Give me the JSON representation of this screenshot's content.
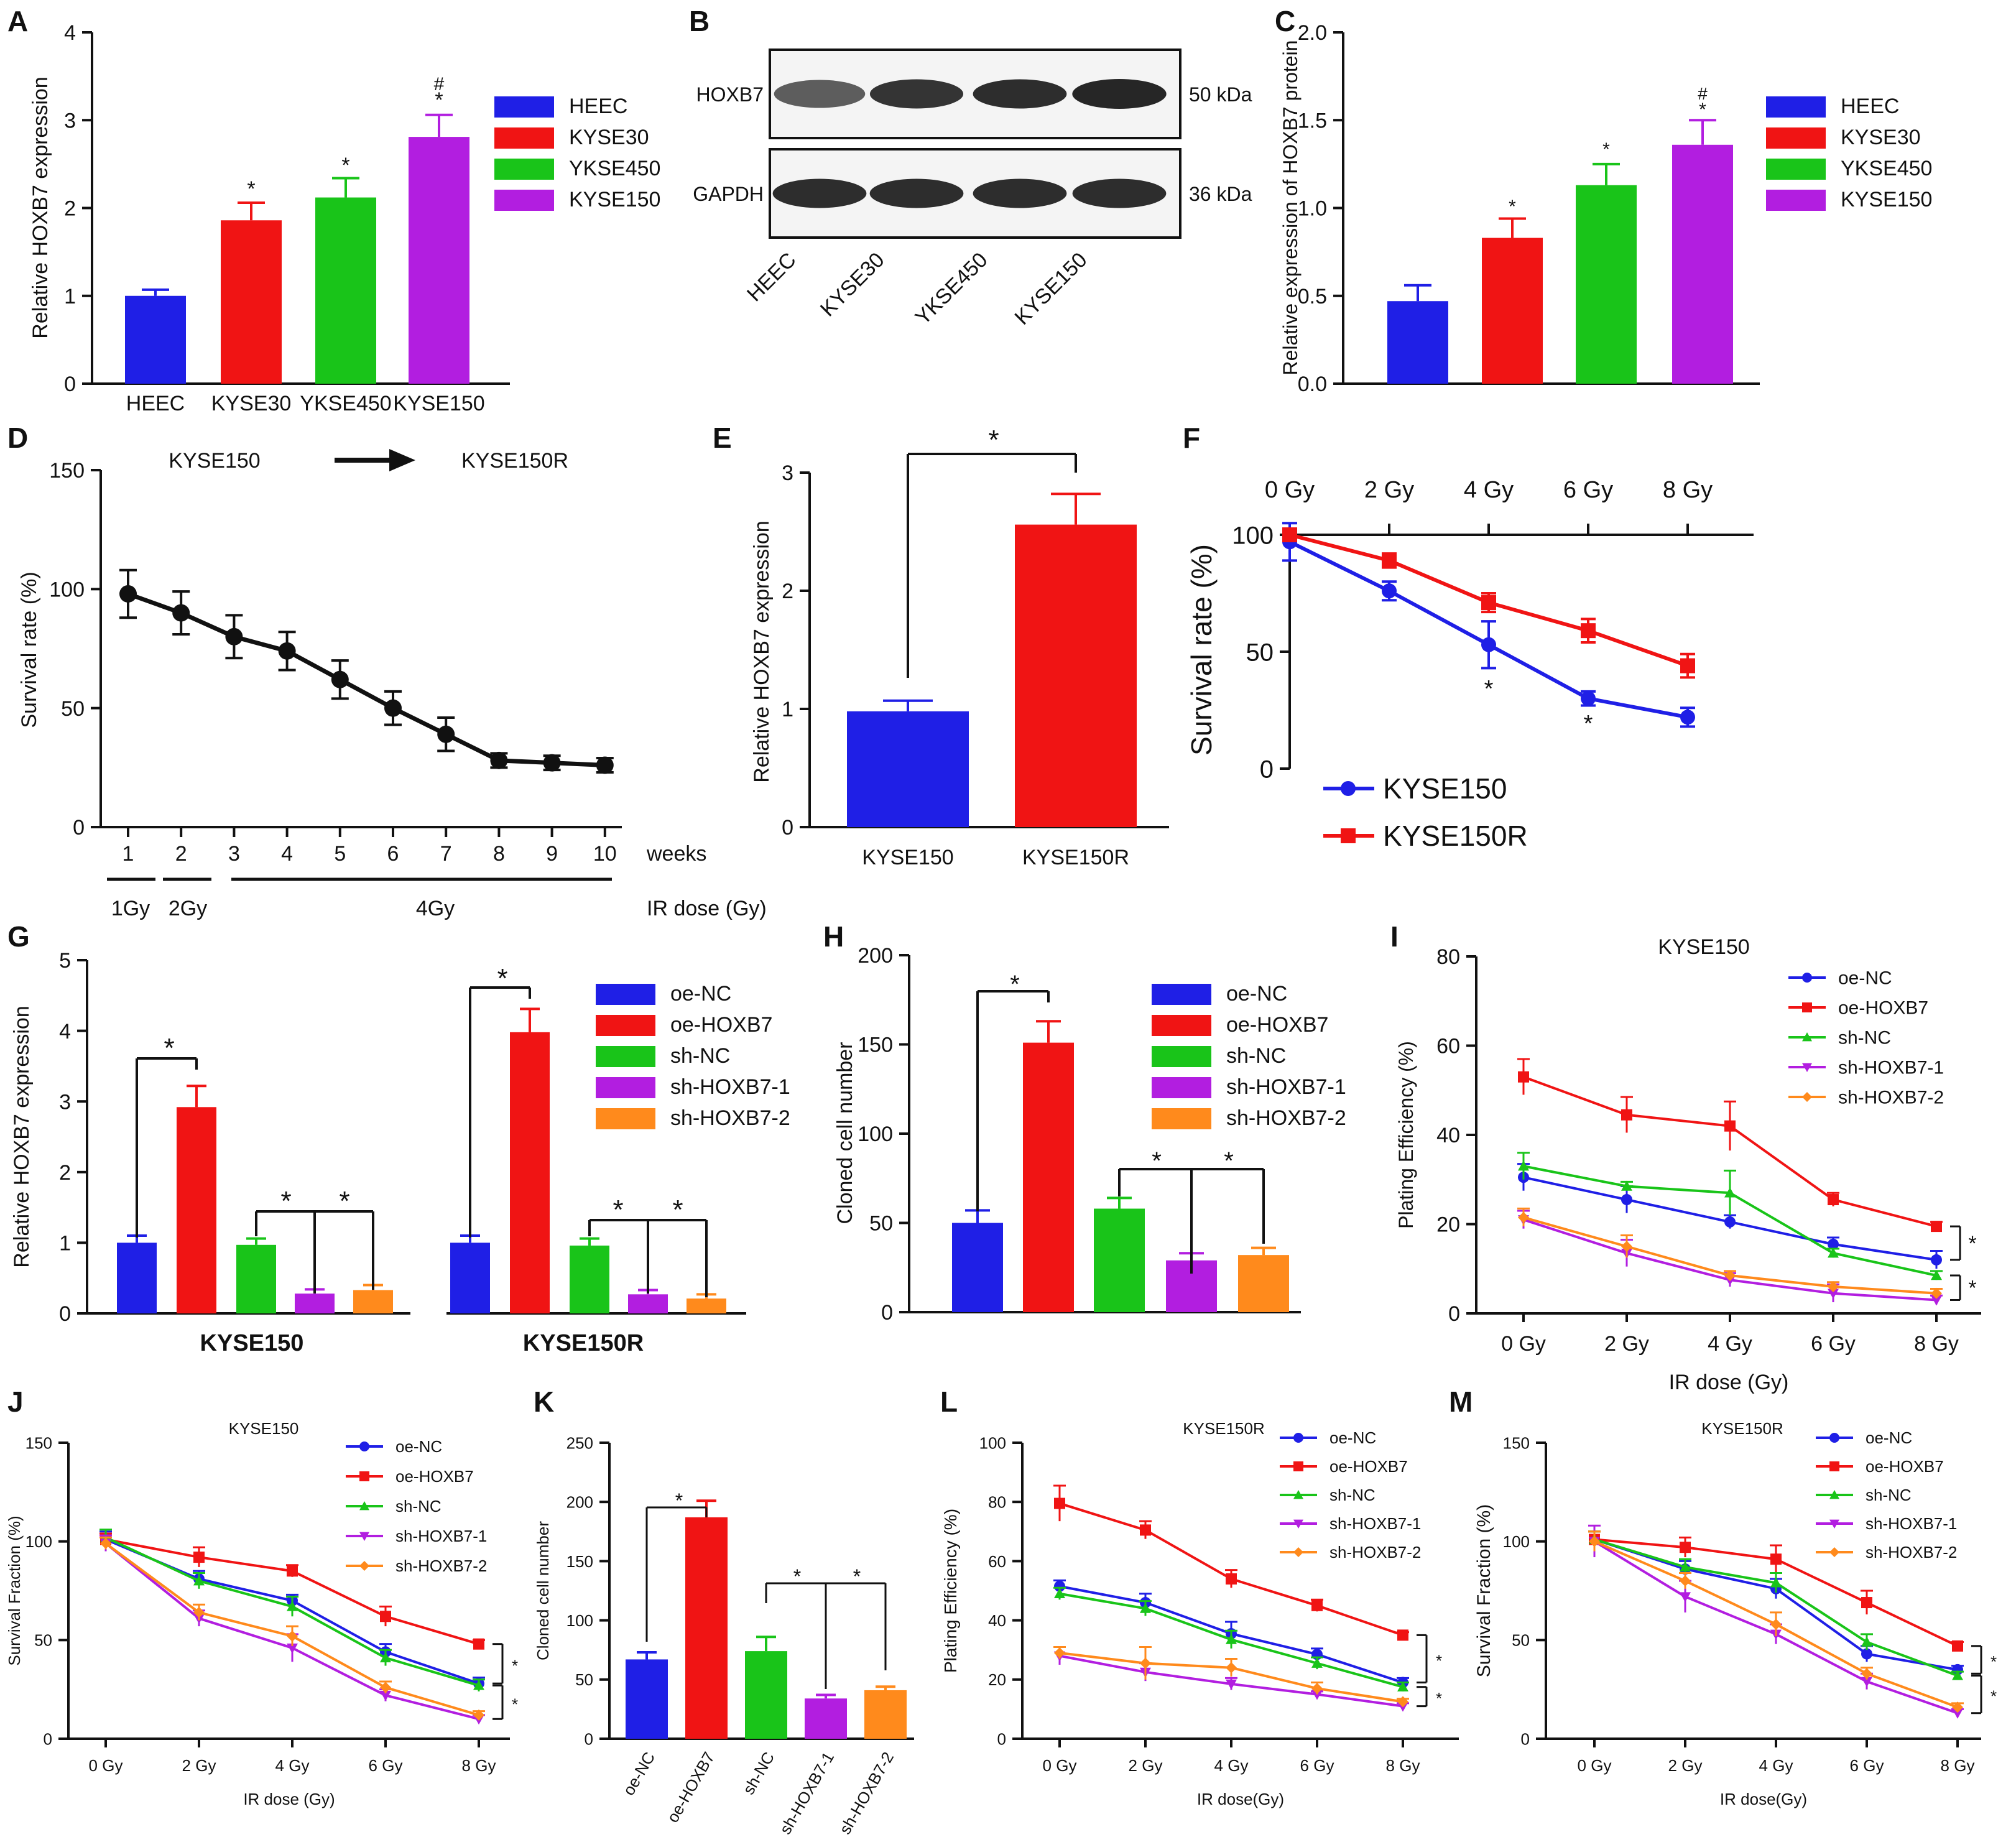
{
  "colors": {
    "blue": "#1f1fe6",
    "red": "#f01414",
    "green": "#19c419",
    "purple": "#b21ee0",
    "orange": "#ff8a1c",
    "black": "#111111"
  },
  "chart_data": [
    {
      "id": "A",
      "panel": "A",
      "type": "bar",
      "ylabel": "Relative HOXB7 expression",
      "xlabel": "",
      "ylim": [
        0,
        4
      ],
      "yticks": [
        0,
        1,
        2,
        3,
        4
      ],
      "categories": [
        "HEEC",
        "KYSE30",
        "YKSE450",
        "KYSE150"
      ],
      "values": [
        1.0,
        1.86,
        2.12,
        2.81
      ],
      "errors": [
        0.07,
        0.2,
        0.22,
        0.25
      ],
      "colors": [
        "#1f1fe6",
        "#f01414",
        "#19c419",
        "#b21ee0"
      ],
      "annotations": [
        "",
        "*",
        "*",
        "#\n*"
      ],
      "legend": [
        "HEEC",
        "KYSE30",
        "YKSE450",
        "KYSE150"
      ]
    },
    {
      "id": "B",
      "panel": "B",
      "type": "western_blot",
      "bands": [
        {
          "label": "HOXB7",
          "size": "50 kDa",
          "intensity": [
            0.55,
            0.85,
            0.9,
            0.95
          ]
        },
        {
          "label": "GAPDH",
          "size": "36 kDa",
          "intensity": [
            0.9,
            0.9,
            0.9,
            0.9
          ]
        }
      ],
      "lanes": [
        "HEEC",
        "KYSE30",
        "YKSE450",
        "KYSE150"
      ]
    },
    {
      "id": "C",
      "panel": "C",
      "type": "bar",
      "ylabel": "Relative expression of HOXB7 protein",
      "ylim": [
        0,
        2.0
      ],
      "yticks": [
        "0.0",
        "0.5",
        "1.0",
        "1.5",
        "2.0"
      ],
      "categories": [
        "HEEC",
        "KYSE30",
        "YKSE450",
        "KYSE150"
      ],
      "values": [
        0.47,
        0.83,
        1.13,
        1.36
      ],
      "errors": [
        0.09,
        0.11,
        0.12,
        0.14
      ],
      "colors": [
        "#1f1fe6",
        "#f01414",
        "#19c419",
        "#b21ee0"
      ],
      "annotations": [
        "",
        "*",
        "*",
        "#\n*"
      ],
      "legend": [
        "HEEC",
        "KYSE30",
        "YKSE450",
        "KYSE150"
      ]
    },
    {
      "id": "D",
      "panel": "D",
      "type": "line",
      "ylabel": "Survival rate (%)",
      "xlabel": "weeks",
      "ylim": [
        0,
        150
      ],
      "yticks": [
        0,
        50,
        100,
        150
      ],
      "x": [
        1,
        2,
        3,
        4,
        5,
        6,
        7,
        8,
        9,
        10
      ],
      "series": [
        {
          "name": "",
          "values": [
            98,
            90,
            80,
            74,
            62,
            50,
            39,
            28,
            27,
            26
          ],
          "errors": [
            10,
            9,
            9,
            8,
            8,
            7,
            7,
            3,
            3,
            3
          ]
        }
      ],
      "header_left": "KYSE150",
      "header_right": "KYSE150R",
      "dose_segments": [
        "1Gy",
        "2Gy",
        "4Gy"
      ],
      "dose_label": "IR dose (Gy)"
    },
    {
      "id": "E",
      "panel": "E",
      "type": "bar",
      "ylabel": "Relative HOXB7 expression",
      "ylim": [
        0,
        3
      ],
      "yticks": [
        0,
        1,
        2,
        3
      ],
      "categories": [
        "KYSE150",
        "KYSE150R"
      ],
      "values": [
        0.98,
        2.56
      ],
      "errors": [
        0.09,
        0.26
      ],
      "colors": [
        "#1f1fe6",
        "#f01414"
      ],
      "bracket": "*"
    },
    {
      "id": "F",
      "panel": "F",
      "type": "line",
      "ylabel": "Survival rate (%)",
      "ylim": [
        0,
        100
      ],
      "yticks": [
        0,
        50,
        100
      ],
      "x": [
        "0 Gy",
        "2 Gy",
        "4 Gy",
        "6 Gy",
        "8 Gy"
      ],
      "series": [
        {
          "name": "KYSE150",
          "color": "#1f1fe6",
          "marker": "circle",
          "values": [
            97,
            76,
            53,
            30,
            22
          ],
          "errors": [
            8,
            4,
            10,
            3,
            4
          ]
        },
        {
          "name": "KYSE150R",
          "color": "#f01414",
          "marker": "square",
          "values": [
            100,
            89,
            71,
            59,
            44
          ],
          "errors": [
            2,
            3,
            4,
            5,
            5
          ]
        }
      ],
      "stars": [
        {
          "x": 2,
          "text": "*"
        },
        {
          "x": 3,
          "text": "*"
        }
      ]
    },
    {
      "id": "G",
      "panel": "G",
      "type": "grouped_bar",
      "ylabel": "Relative HOXB7 expression",
      "ylim": [
        0,
        5
      ],
      "yticks": [
        0,
        1,
        2,
        3,
        4,
        5
      ],
      "categories": [
        "KYSE150",
        "KYSE150R"
      ],
      "series": [
        {
          "name": "oe-NC",
          "color": "#1f1fe6",
          "values": [
            1.0,
            1.0
          ],
          "errors": [
            0.1,
            0.1
          ]
        },
        {
          "name": "oe-HOXB7",
          "color": "#f01414",
          "values": [
            2.92,
            3.98
          ],
          "errors": [
            0.3,
            0.33
          ]
        },
        {
          "name": "sh-NC",
          "color": "#19c419",
          "values": [
            0.97,
            0.96
          ],
          "errors": [
            0.09,
            0.1
          ]
        },
        {
          "name": "sh-HOXB7-1",
          "color": "#b21ee0",
          "values": [
            0.28,
            0.27
          ],
          "errors": [
            0.06,
            0.06
          ]
        },
        {
          "name": "sh-HOXB7-2",
          "color": "#ff8a1c",
          "values": [
            0.33,
            0.21
          ],
          "errors": [
            0.07,
            0.06
          ]
        }
      ],
      "star": "*"
    },
    {
      "id": "H",
      "panel": "H",
      "type": "bar",
      "ylabel": "Cloned cell number",
      "ylim": [
        0,
        200
      ],
      "yticks": [
        0,
        50,
        100,
        150,
        200
      ],
      "categories": [
        "oe-NC",
        "oe-HOXB7",
        "sh-NC",
        "sh-HOXB7-1",
        "sh-HOXB7-2"
      ],
      "values": [
        50,
        151,
        58,
        29,
        32
      ],
      "errors": [
        7,
        12,
        6,
        4,
        4
      ],
      "colors": [
        "#1f1fe6",
        "#f01414",
        "#19c419",
        "#b21ee0",
        "#ff8a1c"
      ],
      "legend": [
        "oe-NC",
        "oe-HOXB7",
        "sh-NC",
        "sh-HOXB7-1",
        "sh-HOXB7-2"
      ],
      "star": "*"
    },
    {
      "id": "I",
      "panel": "I",
      "type": "line",
      "title": "KYSE150",
      "ylabel": "Plating Efficiency (%)",
      "xlabel": "IR dose (Gy)",
      "ylim": [
        0,
        80
      ],
      "yticks": [
        0,
        20,
        40,
        60,
        80
      ],
      "x": [
        "0 Gy",
        "2 Gy",
        "4 Gy",
        "6 Gy",
        "8 Gy"
      ],
      "series": [
        {
          "name": "oe-NC",
          "color": "#1f1fe6",
          "marker": "circle",
          "values": [
            30.5,
            25.5,
            20.5,
            15.5,
            12
          ],
          "errors": [
            3,
            3,
            1.5,
            1.5,
            2
          ]
        },
        {
          "name": "oe-HOXB7",
          "color": "#f01414",
          "marker": "square",
          "values": [
            53,
            44.5,
            42,
            25.5,
            19.5
          ],
          "errors": [
            4,
            4,
            5.5,
            1.5,
            1
          ]
        },
        {
          "name": "sh-NC",
          "color": "#19c419",
          "marker": "triangle-up",
          "values": [
            33,
            28.5,
            27,
            13.5,
            8.5
          ],
          "errors": [
            3,
            1,
            5,
            1,
            1
          ]
        },
        {
          "name": "sh-HOXB7-1",
          "color": "#b21ee0",
          "marker": "triangle-down",
          "values": [
            21,
            13.5,
            7.5,
            4.5,
            3
          ],
          "errors": [
            2,
            3,
            1.5,
            2,
            1
          ]
        },
        {
          "name": "sh-HOXB7-2",
          "color": "#ff8a1c",
          "marker": "diamond",
          "values": [
            21.5,
            15,
            8.5,
            6,
            4.5
          ],
          "errors": [
            2,
            2.5,
            1,
            1,
            1
          ]
        }
      ],
      "star": "*"
    },
    {
      "id": "J",
      "panel": "J",
      "type": "line",
      "title": "KYSE150",
      "ylabel": "Survival Fraction (%)",
      "xlabel": "IR dose (Gy)",
      "ylim": [
        0,
        150
      ],
      "yticks": [
        0,
        50,
        100,
        150
      ],
      "x": [
        "0 Gy",
        "2 Gy",
        "4 Gy",
        "6 Gy",
        "8 Gy"
      ],
      "series": [
        {
          "name": "oe-NC",
          "color": "#1f1fe6",
          "marker": "circle",
          "values": [
            101,
            81,
            70,
            44,
            28
          ],
          "errors": [
            4,
            4,
            3,
            4,
            3
          ]
        },
        {
          "name": "oe-HOXB7",
          "color": "#f01414",
          "marker": "square",
          "values": [
            101,
            92,
            85,
            62,
            48
          ],
          "errors": [
            3,
            5,
            3,
            5,
            2
          ]
        },
        {
          "name": "sh-NC",
          "color": "#19c419",
          "marker": "triangle-up",
          "values": [
            102,
            80,
            67,
            41,
            27
          ],
          "errors": [
            4,
            4,
            5,
            4,
            3
          ]
        },
        {
          "name": "sh-HOXB7-1",
          "color": "#b21ee0",
          "marker": "triangle-down",
          "values": [
            99,
            61,
            46,
            22,
            10
          ],
          "errors": [
            4,
            4,
            7,
            3,
            2
          ]
        },
        {
          "name": "sh-HOXB7-2",
          "color": "#ff8a1c",
          "marker": "diamond",
          "values": [
            99,
            64,
            52,
            26,
            12
          ],
          "errors": [
            3,
            4,
            5,
            3,
            2
          ]
        }
      ],
      "star": "*"
    },
    {
      "id": "K",
      "panel": "K",
      "type": "bar",
      "ylabel": "Cloned cell number",
      "ylim": [
        0,
        250
      ],
      "yticks": [
        0,
        50,
        100,
        150,
        200,
        250
      ],
      "categories": [
        "oe-NC",
        "oe-HOXB7",
        "sh-NC",
        "sh-HOXB7-1",
        "sh-HOXB7-2"
      ],
      "values": [
        67,
        187,
        74,
        34,
        41
      ],
      "errors": [
        6,
        14,
        12,
        3,
        3
      ],
      "colors": [
        "#1f1fe6",
        "#f01414",
        "#19c419",
        "#b21ee0",
        "#ff8a1c"
      ],
      "star": "*"
    },
    {
      "id": "L",
      "panel": "L",
      "type": "line",
      "title": "KYSE150R",
      "ylabel": "Plating Efficiency (%)",
      "xlabel": "IR dose(Gy)",
      "ylim": [
        0,
        100
      ],
      "yticks": [
        0,
        20,
        40,
        60,
        80,
        100
      ],
      "x": [
        "0 Gy",
        "2 Gy",
        "4 Gy",
        "6 Gy",
        "8 Gy"
      ],
      "series": [
        {
          "name": "oe-NC",
          "color": "#1f1fe6",
          "marker": "circle",
          "values": [
            51.5,
            46,
            35.5,
            28.5,
            19
          ],
          "errors": [
            2,
            3,
            4,
            2,
            1.5
          ]
        },
        {
          "name": "oe-HOXB7",
          "color": "#f01414",
          "marker": "square",
          "values": [
            79.5,
            70.5,
            54,
            45,
            35
          ],
          "errors": [
            6,
            3,
            3,
            2,
            1
          ]
        },
        {
          "name": "sh-NC",
          "color": "#19c419",
          "marker": "triangle-up",
          "values": [
            49,
            44,
            33.5,
            25.5,
            17.5
          ],
          "errors": [
            2,
            2.5,
            3,
            2,
            1.5
          ]
        },
        {
          "name": "sh-HOXB7-1",
          "color": "#b21ee0",
          "marker": "triangle-down",
          "values": [
            28,
            22.5,
            18.5,
            15,
            11
          ],
          "errors": [
            3,
            3,
            2,
            1,
            1
          ]
        },
        {
          "name": "sh-HOXB7-2",
          "color": "#ff8a1c",
          "marker": "diamond",
          "values": [
            29,
            25.5,
            24,
            17,
            12.5
          ],
          "errors": [
            2,
            5.5,
            3,
            2,
            1
          ]
        }
      ],
      "star": "*"
    },
    {
      "id": "M",
      "panel": "M",
      "type": "line",
      "title": "KYSE150R",
      "ylabel": "Survival Fraction (%)",
      "xlabel": "IR dose(Gy)",
      "ylim": [
        0,
        150
      ],
      "yticks": [
        0,
        50,
        100,
        150
      ],
      "x": [
        "0 Gy",
        "2 Gy",
        "4 Gy",
        "6 Gy",
        "8 Gy"
      ],
      "series": [
        {
          "name": "oe-NC",
          "color": "#1f1fe6",
          "marker": "circle",
          "values": [
            101,
            86,
            76,
            43,
            35
          ],
          "errors": [
            4,
            4,
            5,
            4,
            2
          ]
        },
        {
          "name": "oe-HOXB7",
          "color": "#f01414",
          "marker": "square",
          "values": [
            101,
            97,
            91,
            69,
            47
          ],
          "errors": [
            4,
            5,
            7,
            6,
            2
          ]
        },
        {
          "name": "sh-NC",
          "color": "#19c419",
          "marker": "triangle-up",
          "values": [
            101,
            87,
            79,
            49,
            32
          ],
          "errors": [
            4,
            4,
            5,
            4,
            2
          ]
        },
        {
          "name": "sh-HOXB7-1",
          "color": "#b21ee0",
          "marker": "triangle-down",
          "values": [
            100,
            72,
            53,
            29,
            13
          ],
          "errors": [
            8,
            8,
            5,
            4,
            2
          ]
        },
        {
          "name": "sh-HOXB7-2",
          "color": "#ff8a1c",
          "marker": "diamond",
          "values": [
            100,
            80,
            58,
            33,
            16
          ],
          "errors": [
            5,
            4,
            6,
            3,
            2
          ]
        }
      ],
      "star": "*"
    }
  ]
}
